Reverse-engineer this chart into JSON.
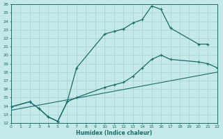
{
  "xlabel": "Humidex (Indice chaleur)",
  "xlim": [
    0,
    22
  ],
  "ylim": [
    12,
    26
  ],
  "xticks": [
    0,
    1,
    2,
    3,
    4,
    5,
    6,
    7,
    8,
    9,
    10,
    11,
    12,
    13,
    14,
    15,
    16,
    17,
    18,
    19,
    20,
    21,
    22
  ],
  "yticks": [
    12,
    13,
    14,
    15,
    16,
    17,
    18,
    19,
    20,
    21,
    22,
    23,
    24,
    25,
    26
  ],
  "bg_color": "#c5e8e8",
  "line_color": "#1a6b6b",
  "grid_color": "#a8d0d0",
  "line1_x": [
    0,
    2,
    3,
    4,
    5,
    6,
    7,
    10,
    11,
    12,
    13,
    14,
    15,
    16,
    17,
    20,
    21
  ],
  "line1_y": [
    13.9,
    14.5,
    13.7,
    12.7,
    12.2,
    14.5,
    18.5,
    22.5,
    22.8,
    23.1,
    23.8,
    24.2,
    25.8,
    25.4,
    23.2,
    21.3,
    21.3
  ],
  "line2_x": [
    0,
    2,
    3,
    4,
    5,
    6,
    7,
    10,
    11,
    12,
    13,
    14,
    15,
    16,
    17,
    20,
    21,
    22
  ],
  "line2_y": [
    13.9,
    14.5,
    13.7,
    12.7,
    12.2,
    14.5,
    15.0,
    16.2,
    16.5,
    16.8,
    17.5,
    18.5,
    19.5,
    20.0,
    19.5,
    19.2,
    19.0,
    18.5
  ],
  "line3_x": [
    0,
    22
  ],
  "line3_y": [
    13.5,
    18.0
  ]
}
